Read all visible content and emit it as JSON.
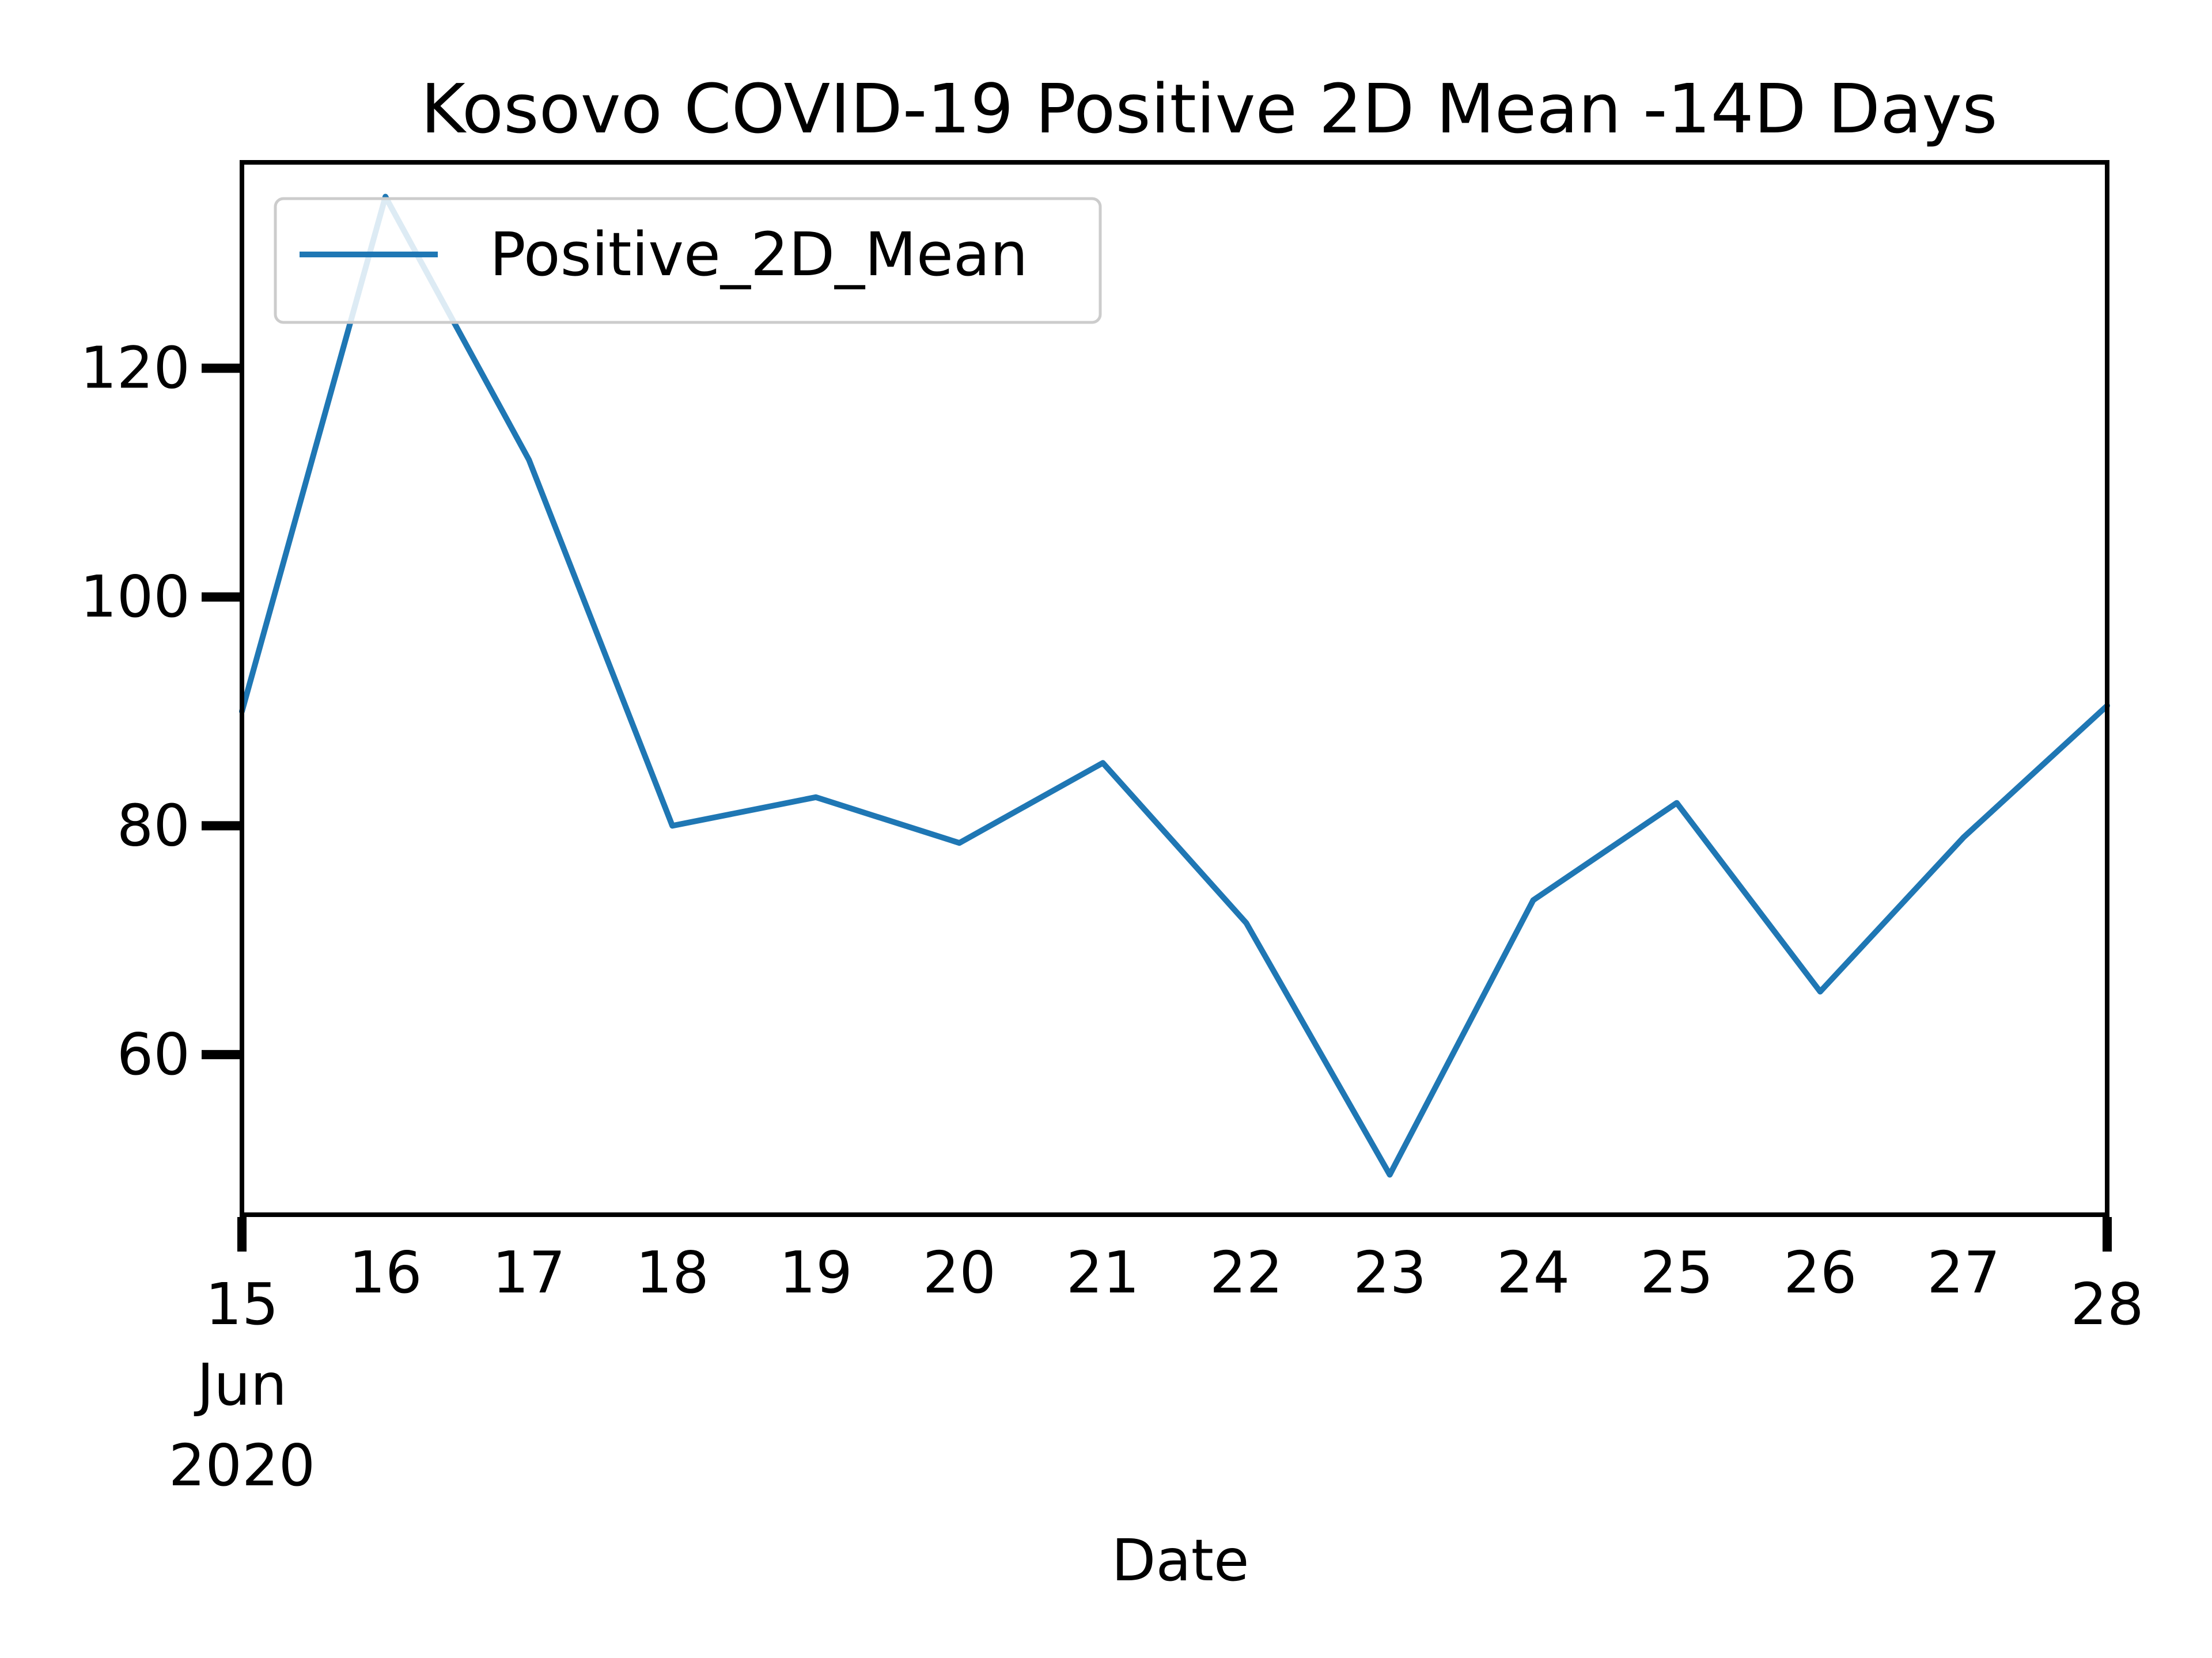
{
  "chart_data": {
    "type": "line",
    "title": "Kosovo COVID-19 Positive 2D Mean -14D Days",
    "xlabel": "Date",
    "ylabel": "",
    "x_tick_labels": [
      {
        "date": "2020-06-15",
        "lines": [
          "15",
          "Jun",
          "2020"
        ]
      },
      {
        "date": "2020-06-16",
        "lines": [
          "16"
        ]
      },
      {
        "date": "2020-06-17",
        "lines": [
          "17"
        ]
      },
      {
        "date": "2020-06-18",
        "lines": [
          "18"
        ]
      },
      {
        "date": "2020-06-19",
        "lines": [
          "19"
        ]
      },
      {
        "date": "2020-06-20",
        "lines": [
          "20"
        ]
      },
      {
        "date": "2020-06-21",
        "lines": [
          "21"
        ]
      },
      {
        "date": "2020-06-22",
        "lines": [
          "22"
        ]
      },
      {
        "date": "2020-06-23",
        "lines": [
          "23"
        ]
      },
      {
        "date": "2020-06-24",
        "lines": [
          "24"
        ]
      },
      {
        "date": "2020-06-25",
        "lines": [
          "25"
        ]
      },
      {
        "date": "2020-06-26",
        "lines": [
          "26"
        ]
      },
      {
        "date": "2020-06-27",
        "lines": [
          "27"
        ]
      },
      {
        "date": "2020-06-28",
        "lines": [
          "28"
        ]
      }
    ],
    "y_ticks": [
      60,
      80,
      100,
      120
    ],
    "xlim": [
      "2020-06-15",
      "2020-06-28"
    ],
    "ylim": [
      46,
      138
    ],
    "grid": false,
    "legend_position": "upper left",
    "series": [
      {
        "name": "Positive_2D_Mean",
        "color": "#1f77b4",
        "points": [
          {
            "x": "2020-06-15",
            "y": 90
          },
          {
            "x": "2020-06-16",
            "y": 135
          },
          {
            "x": "2020-06-17",
            "y": 112
          },
          {
            "x": "2020-06-18",
            "y": 80
          },
          {
            "x": "2020-06-19",
            "y": 82.5
          },
          {
            "x": "2020-06-20",
            "y": 78.5
          },
          {
            "x": "2020-06-21",
            "y": 85.5
          },
          {
            "x": "2020-06-22",
            "y": 71.5
          },
          {
            "x": "2020-06-23",
            "y": 49.5
          },
          {
            "x": "2020-06-24",
            "y": 73.5
          },
          {
            "x": "2020-06-25",
            "y": 82
          },
          {
            "x": "2020-06-26",
            "y": 65.5
          },
          {
            "x": "2020-06-27",
            "y": 79
          },
          {
            "x": "2020-06-28",
            "y": 90.5
          }
        ]
      }
    ]
  }
}
